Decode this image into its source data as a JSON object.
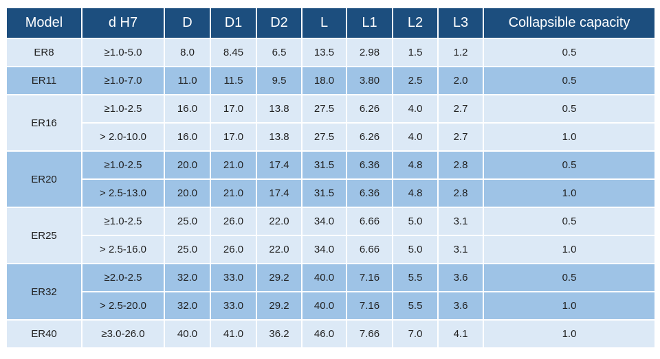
{
  "table": {
    "header": [
      "Model",
      "d H7",
      "D",
      "D1",
      "D2",
      "L",
      "L1",
      "L2",
      "L3",
      "Collapsible capacity"
    ],
    "groups": [
      {
        "model": "ER8",
        "rows": [
          [
            "≥1.0-5.0",
            "8.0",
            "8.45",
            "6.5",
            "13.5",
            "2.98",
            "1.5",
            "1.2",
            "0.5"
          ]
        ]
      },
      {
        "model": "ER11",
        "rows": [
          [
            "≥1.0-7.0",
            "11.0",
            "11.5",
            "9.5",
            "18.0",
            "3.80",
            "2.5",
            "2.0",
            "0.5"
          ]
        ]
      },
      {
        "model": "ER16",
        "rows": [
          [
            "≥1.0-2.5",
            "16.0",
            "17.0",
            "13.8",
            "27.5",
            "6.26",
            "4.0",
            "2.7",
            "0.5"
          ],
          [
            "> 2.0-10.0",
            "16.0",
            "17.0",
            "13.8",
            "27.5",
            "6.26",
            "4.0",
            "2.7",
            "1.0"
          ]
        ]
      },
      {
        "model": "ER20",
        "rows": [
          [
            "≥1.0-2.5",
            "20.0",
            "21.0",
            "17.4",
            "31.5",
            "6.36",
            "4.8",
            "2.8",
            "0.5"
          ],
          [
            "> 2.5-13.0",
            "20.0",
            "21.0",
            "17.4",
            "31.5",
            "6.36",
            "4.8",
            "2.8",
            "1.0"
          ]
        ]
      },
      {
        "model": "ER25",
        "rows": [
          [
            "≥1.0-2.5",
            "25.0",
            "26.0",
            "22.0",
            "34.0",
            "6.66",
            "5.0",
            "3.1",
            "0.5"
          ],
          [
            "> 2.5-16.0",
            "25.0",
            "26.0",
            "22.0",
            "34.0",
            "6.66",
            "5.0",
            "3.1",
            "1.0"
          ]
        ]
      },
      {
        "model": "ER32",
        "rows": [
          [
            "≥2.0-2.5",
            "32.0",
            "33.0",
            "29.2",
            "40.0",
            "7.16",
            "5.5",
            "3.6",
            "0.5"
          ],
          [
            "> 2.5-20.0",
            "32.0",
            "33.0",
            "29.2",
            "40.0",
            "7.16",
            "5.5",
            "3.6",
            "1.0"
          ]
        ]
      },
      {
        "model": "ER40",
        "rows": [
          [
            "≥3.0-26.0",
            "40.0",
            "41.0",
            "36.2",
            "46.0",
            "7.66",
            "7.0",
            "4.1",
            "1.0"
          ]
        ]
      }
    ]
  }
}
